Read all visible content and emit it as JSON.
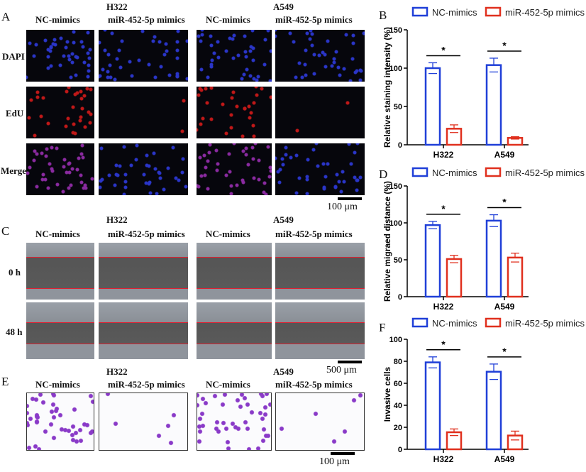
{
  "panels": {
    "A": "A",
    "B": "B",
    "C": "C",
    "D": "D",
    "E": "E",
    "F": "F"
  },
  "cells": [
    "H322",
    "A549"
  ],
  "conditions": [
    "NC-mimics",
    "miR-452-5p mimics"
  ],
  "rows_A": [
    "DAPI",
    "EdU",
    "Merge"
  ],
  "rows_C": [
    "0 h",
    "48 h"
  ],
  "scale_A": "100 μm",
  "scale_C": "500 μm",
  "scale_E": "100 μm",
  "colors": {
    "nc": "#1f3fd8",
    "mimic": "#e0301e"
  },
  "chart_data": [
    {
      "type": "bar",
      "panel": "B",
      "ylabel": "Relative staining intensity (%)",
      "categories": [
        "H322",
        "A549"
      ],
      "ylim": [
        0,
        150
      ],
      "yticks": [
        0,
        50,
        100,
        150
      ],
      "series": [
        {
          "name": "NC-mimics",
          "values": [
            100,
            104
          ],
          "err": [
            7,
            9
          ]
        },
        {
          "name": "miR-452-5p mimics",
          "values": [
            21,
            9
          ],
          "err": [
            5,
            1.5
          ]
        }
      ],
      "significance": [
        "*",
        "*"
      ],
      "legend": "top"
    },
    {
      "type": "bar",
      "panel": "D",
      "ylabel": "Relative migraed distance (%)",
      "categories": [
        "H322",
        "A549"
      ],
      "ylim": [
        0,
        150
      ],
      "yticks": [
        0,
        50,
        100,
        150
      ],
      "series": [
        {
          "name": "NC-mimics",
          "values": [
            97,
            103
          ],
          "err": [
            5,
            8
          ]
        },
        {
          "name": "miR-452-5p mimics",
          "values": [
            51,
            53
          ],
          "err": [
            5,
            6
          ]
        }
      ],
      "significance": [
        "*",
        "*"
      ],
      "legend": "top"
    },
    {
      "type": "bar",
      "panel": "F",
      "ylabel": "Invasive cells",
      "categories": [
        "H322",
        "A549"
      ],
      "ylim": [
        0,
        100
      ],
      "yticks": [
        0,
        20,
        40,
        60,
        80,
        100
      ],
      "series": [
        {
          "name": "NC-mimics",
          "values": [
            79,
            70.5
          ],
          "err": [
            5,
            7
          ]
        },
        {
          "name": "miR-452-5p mimics",
          "values": [
            15.5,
            12.5
          ],
          "err": [
            3,
            4
          ]
        }
      ],
      "significance": [
        "*",
        "*"
      ],
      "legend": "top"
    }
  ]
}
